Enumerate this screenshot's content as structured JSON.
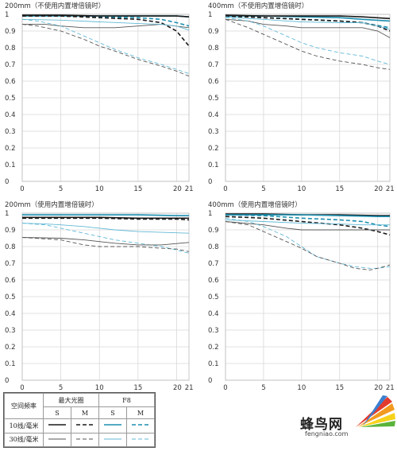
{
  "chart_data": [
    {
      "type": "line",
      "title": "200mm（不使用内置增倍镜时）",
      "xlim": [
        0,
        21.6
      ],
      "ylim": [
        0,
        1
      ],
      "xticks": [
        0,
        5,
        10,
        15,
        20,
        21
      ],
      "yticks": [
        0,
        0.1,
        0.2,
        0.3,
        0.4,
        0.5,
        0.6,
        0.7,
        0.8,
        0.9,
        1
      ],
      "grid": true,
      "series": [
        {
          "style": "f8-10-S",
          "x": [
            0,
            5,
            10,
            15,
            18,
            20,
            21.6
          ],
          "y": [
            0.99,
            0.99,
            0.99,
            0.99,
            0.99,
            0.99,
            0.985
          ]
        },
        {
          "style": "f8-10-M",
          "x": [
            0,
            5,
            10,
            15,
            18,
            20,
            21.6
          ],
          "y": [
            0.99,
            0.99,
            0.985,
            0.98,
            0.97,
            0.95,
            0.93
          ]
        },
        {
          "style": "max-10-S",
          "x": [
            0,
            5,
            10,
            15,
            18,
            20,
            21.6
          ],
          "y": [
            0.995,
            0.995,
            0.99,
            0.99,
            0.99,
            0.99,
            0.985
          ]
        },
        {
          "style": "max-10-M",
          "x": [
            0,
            5,
            10,
            15,
            18,
            20,
            21.6
          ],
          "y": [
            0.99,
            0.99,
            0.98,
            0.97,
            0.95,
            0.9,
            0.81
          ]
        },
        {
          "style": "max-30-S",
          "x": [
            0,
            3,
            5,
            8,
            10,
            12,
            15,
            18,
            21.6
          ],
          "y": [
            0.94,
            0.94,
            0.93,
            0.92,
            0.92,
            0.92,
            0.93,
            0.94,
            0.92
          ]
        },
        {
          "style": "f8-30-S",
          "x": [
            0,
            5,
            10,
            15,
            18,
            20,
            21.6
          ],
          "y": [
            0.97,
            0.965,
            0.955,
            0.945,
            0.94,
            0.93,
            0.905
          ]
        },
        {
          "style": "max-30-M",
          "x": [
            0,
            2,
            5,
            8,
            10,
            12,
            15,
            18,
            20,
            21.6
          ],
          "y": [
            0.94,
            0.93,
            0.9,
            0.85,
            0.81,
            0.78,
            0.73,
            0.69,
            0.66,
            0.63
          ]
        },
        {
          "style": "f8-30-M",
          "x": [
            0,
            2,
            5,
            8,
            10,
            12,
            15,
            18,
            20,
            21.6
          ],
          "y": [
            0.97,
            0.96,
            0.93,
            0.87,
            0.83,
            0.79,
            0.74,
            0.7,
            0.67,
            0.645
          ]
        }
      ]
    },
    {
      "type": "line",
      "title": "400mm（不使用内置增倍镜时）",
      "xlim": [
        0,
        21.6
      ],
      "ylim": [
        0,
        1
      ],
      "xticks": [
        0,
        5,
        10,
        15,
        20,
        21
      ],
      "yticks": [
        0,
        0.1,
        0.2,
        0.3,
        0.4,
        0.5,
        0.6,
        0.7,
        0.8,
        0.9,
        1
      ],
      "grid": true,
      "series": [
        {
          "style": "f8-10-S",
          "x": [
            0,
            5,
            10,
            15,
            18,
            21.6
          ],
          "y": [
            0.99,
            0.99,
            0.985,
            0.98,
            0.97,
            0.96
          ]
        },
        {
          "style": "max-10-S",
          "x": [
            0,
            5,
            10,
            15,
            18,
            21.6
          ],
          "y": [
            0.995,
            0.99,
            0.99,
            0.99,
            0.985,
            0.975
          ]
        },
        {
          "style": "f8-10-M",
          "x": [
            0,
            5,
            10,
            15,
            18,
            21.6
          ],
          "y": [
            0.99,
            0.98,
            0.97,
            0.96,
            0.95,
            0.92
          ]
        },
        {
          "style": "max-10-M",
          "x": [
            0,
            5,
            10,
            15,
            18,
            20,
            21.6
          ],
          "y": [
            0.99,
            0.98,
            0.97,
            0.96,
            0.95,
            0.93,
            0.9
          ]
        },
        {
          "style": "max-30-S",
          "x": [
            0,
            3,
            5,
            8,
            10,
            15,
            18,
            20,
            21.6
          ],
          "y": [
            0.97,
            0.96,
            0.94,
            0.93,
            0.92,
            0.92,
            0.92,
            0.9,
            0.86
          ]
        },
        {
          "style": "f8-30-S",
          "x": [
            0,
            3,
            5,
            8,
            10,
            15,
            18,
            20,
            21.6
          ],
          "y": [
            0.985,
            0.975,
            0.97,
            0.96,
            0.955,
            0.95,
            0.95,
            0.93,
            0.91
          ]
        },
        {
          "style": "f8-30-M",
          "x": [
            0,
            3,
            5,
            8,
            10,
            12,
            15,
            18,
            20,
            21.6
          ],
          "y": [
            0.98,
            0.96,
            0.93,
            0.87,
            0.83,
            0.8,
            0.77,
            0.75,
            0.72,
            0.7
          ]
        },
        {
          "style": "max-30-M",
          "x": [
            0,
            3,
            5,
            8,
            10,
            12,
            15,
            18,
            20,
            21.6
          ],
          "y": [
            0.97,
            0.92,
            0.88,
            0.82,
            0.78,
            0.75,
            0.72,
            0.7,
            0.68,
            0.67
          ]
        }
      ]
    },
    {
      "type": "line",
      "title": "200mm（使用内置增倍镜时）",
      "xlim": [
        0,
        21.6
      ],
      "ylim": [
        0,
        1
      ],
      "xticks": [
        0,
        5,
        10,
        15,
        20,
        21
      ],
      "yticks": [
        0,
        0.1,
        0.2,
        0.3,
        0.4,
        0.5,
        0.6,
        0.7,
        0.8,
        0.9,
        1
      ],
      "grid": true,
      "series": [
        {
          "style": "f8-10-S",
          "x": [
            0,
            5,
            10,
            15,
            20,
            21.6
          ],
          "y": [
            0.99,
            0.99,
            0.99,
            0.99,
            0.985,
            0.985
          ]
        },
        {
          "style": "max-10-S",
          "x": [
            0,
            5,
            10,
            15,
            20,
            21.6
          ],
          "y": [
            0.975,
            0.975,
            0.975,
            0.97,
            0.97,
            0.97
          ]
        },
        {
          "style": "max-10-M",
          "x": [
            0,
            5,
            10,
            15,
            20,
            21.6
          ],
          "y": [
            0.97,
            0.97,
            0.97,
            0.965,
            0.965,
            0.96
          ]
        },
        {
          "style": "f8-30-S",
          "x": [
            0,
            3,
            5,
            8,
            10,
            12,
            15,
            18,
            21.6
          ],
          "y": [
            0.94,
            0.935,
            0.93,
            0.92,
            0.91,
            0.9,
            0.89,
            0.885,
            0.88
          ]
        },
        {
          "style": "f8-30-M",
          "x": [
            0,
            3,
            5,
            8,
            10,
            12,
            15,
            18,
            20,
            21.6
          ],
          "y": [
            0.94,
            0.93,
            0.91,
            0.88,
            0.86,
            0.84,
            0.82,
            0.8,
            0.78,
            0.76
          ]
        },
        {
          "style": "max-30-S",
          "x": [
            0,
            5,
            8,
            10,
            12,
            15,
            18,
            21.6
          ],
          "y": [
            0.855,
            0.85,
            0.84,
            0.83,
            0.82,
            0.81,
            0.81,
            0.825
          ]
        },
        {
          "style": "max-30-M",
          "x": [
            0,
            5,
            8,
            10,
            12,
            15,
            18,
            20,
            21.6
          ],
          "y": [
            0.855,
            0.84,
            0.81,
            0.8,
            0.8,
            0.8,
            0.79,
            0.785,
            0.77
          ]
        }
      ]
    },
    {
      "type": "line",
      "title": "400mm（使用内置增倍镜时）",
      "xlim": [
        0,
        21.6
      ],
      "ylim": [
        0,
        1
      ],
      "xticks": [
        0,
        5,
        10,
        15,
        20,
        21
      ],
      "yticks": [
        0,
        0.1,
        0.2,
        0.3,
        0.4,
        0.5,
        0.6,
        0.7,
        0.8,
        0.9,
        1
      ],
      "grid": true,
      "series": [
        {
          "style": "max-10-S",
          "x": [
            0,
            5,
            10,
            15,
            20,
            21.6
          ],
          "y": [
            0.995,
            0.995,
            0.99,
            0.99,
            0.985,
            0.985
          ]
        },
        {
          "style": "f8-10-S",
          "x": [
            0,
            5,
            10,
            15,
            20,
            21.6
          ],
          "y": [
            0.99,
            0.99,
            0.99,
            0.985,
            0.98,
            0.98
          ]
        },
        {
          "style": "f8-10-M",
          "x": [
            0,
            5,
            10,
            15,
            18,
            20,
            21.6
          ],
          "y": [
            0.99,
            0.985,
            0.97,
            0.96,
            0.95,
            0.93,
            0.92
          ]
        },
        {
          "style": "max-10-M",
          "x": [
            0,
            5,
            10,
            15,
            18,
            20,
            21.6
          ],
          "y": [
            0.98,
            0.97,
            0.95,
            0.93,
            0.91,
            0.89,
            0.87
          ]
        },
        {
          "style": "f8-30-S",
          "x": [
            0,
            5,
            10,
            15,
            18,
            21.6
          ],
          "y": [
            0.96,
            0.95,
            0.94,
            0.935,
            0.93,
            0.93
          ]
        },
        {
          "style": "max-30-S",
          "x": [
            0,
            5,
            8,
            10,
            12,
            15,
            18,
            21.6
          ],
          "y": [
            0.95,
            0.93,
            0.91,
            0.9,
            0.9,
            0.9,
            0.9,
            0.9
          ]
        },
        {
          "style": "f8-30-M",
          "x": [
            0,
            3,
            5,
            8,
            10,
            12,
            15,
            17,
            19,
            20,
            21.6
          ],
          "y": [
            0.97,
            0.95,
            0.92,
            0.86,
            0.8,
            0.74,
            0.7,
            0.68,
            0.67,
            0.67,
            0.68
          ]
        },
        {
          "style": "max-30-M",
          "x": [
            0,
            3,
            5,
            8,
            10,
            12,
            15,
            17,
            19,
            20,
            21.6
          ],
          "y": [
            0.95,
            0.93,
            0.89,
            0.83,
            0.79,
            0.74,
            0.7,
            0.67,
            0.66,
            0.67,
            0.69
          ]
        }
      ]
    }
  ],
  "styles": {
    "max-10-S": {
      "color": "#1a1a1a",
      "dash": "",
      "width": 1.6
    },
    "max-10-M": {
      "color": "#1a1a1a",
      "dash": "5,3",
      "width": 1.6
    },
    "max-30-S": {
      "color": "#555555",
      "dash": "",
      "width": 0.9
    },
    "max-30-M": {
      "color": "#555555",
      "dash": "5,3",
      "width": 0.9
    },
    "f8-10-S": {
      "color": "#1c8fb0",
      "dash": "",
      "width": 1.6
    },
    "f8-10-M": {
      "color": "#1c8fb0",
      "dash": "5,3",
      "width": 1.6
    },
    "f8-30-S": {
      "color": "#62b9d6",
      "dash": "",
      "width": 0.9
    },
    "f8-30-M": {
      "color": "#62b9d6",
      "dash": "5,3",
      "width": 0.9
    }
  },
  "legend": {
    "row_header": "空间频率",
    "col_max": "最大光圈",
    "col_f8": "F8",
    "s_label": "S",
    "m_label": "M",
    "row1": "10线/毫米",
    "row2": "30线/毫米"
  },
  "logo": {
    "cn": "蜂鸟网",
    "url": "fengniao.com"
  }
}
